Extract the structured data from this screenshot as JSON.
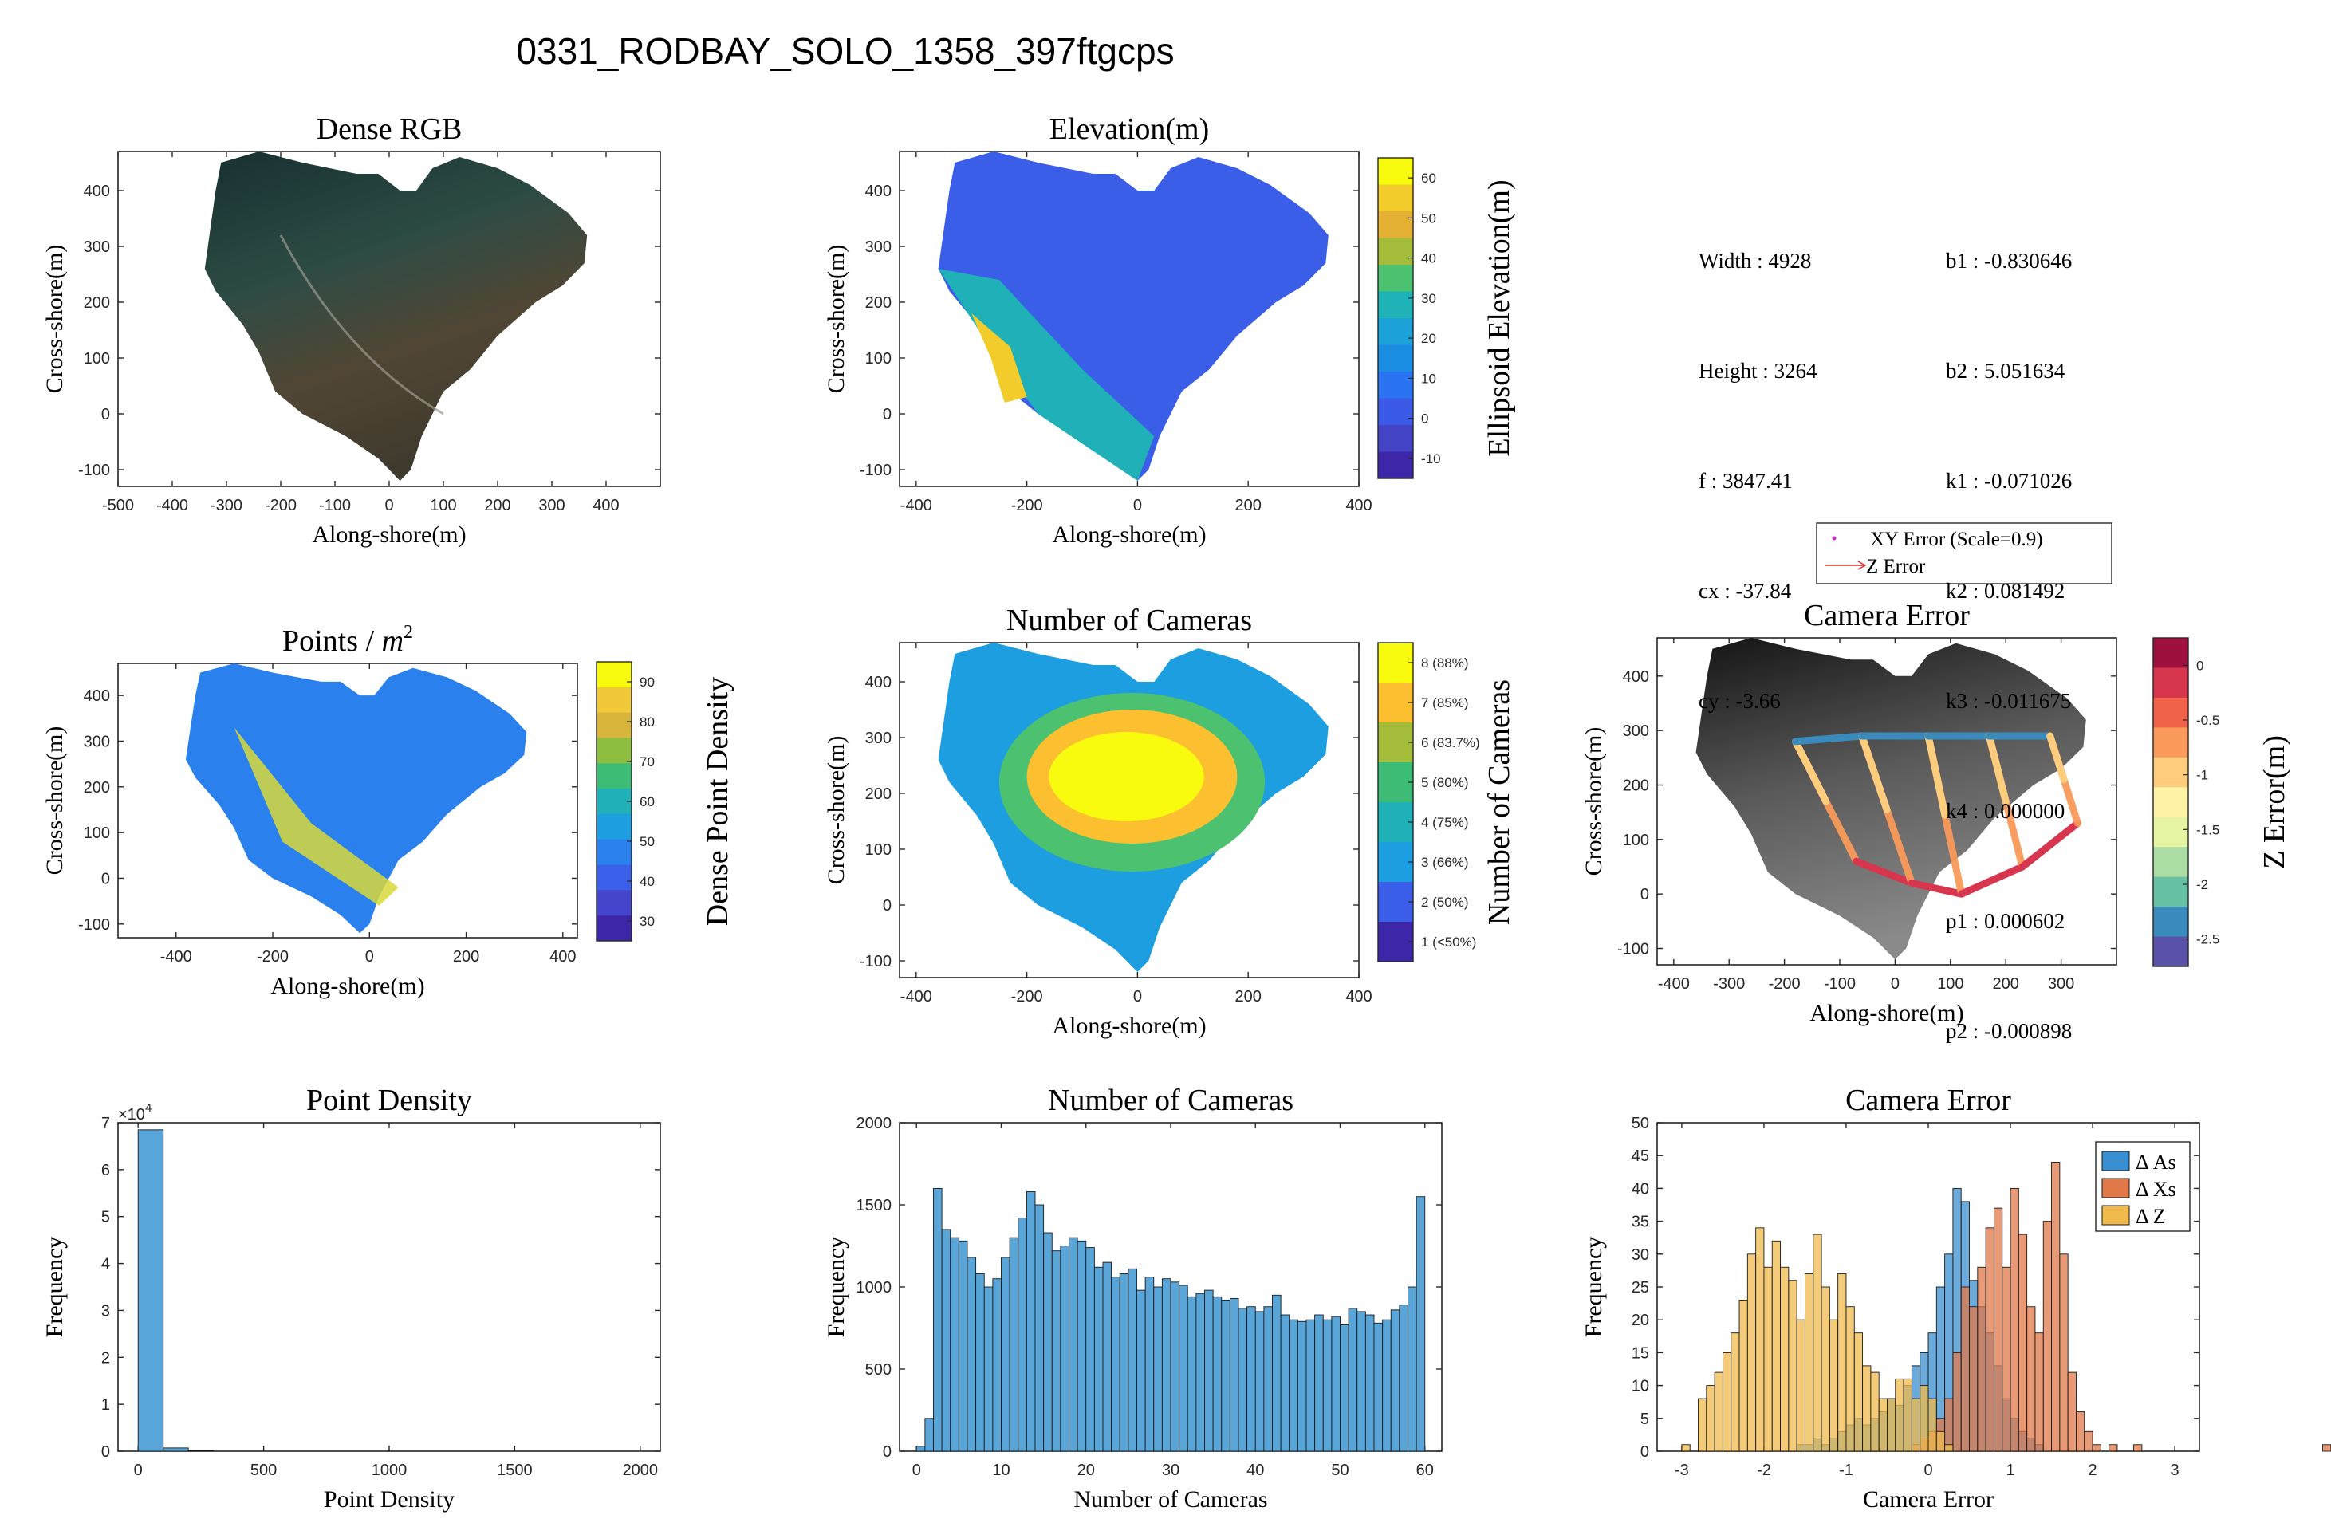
{
  "figure": {
    "suptitle": "0331_RODBAY_SOLO_1358_397ftgcps"
  },
  "camera_params": {
    "left": [
      {
        "label": "Width",
        "value": "4928"
      },
      {
        "label": "Height",
        "value": "3264"
      },
      {
        "label": "f",
        "value": "3847.41"
      },
      {
        "label": "cx",
        "value": "-37.84"
      },
      {
        "label": "cy",
        "value": "-3.66"
      }
    ],
    "right": [
      {
        "label": "b1",
        "value": "-0.830646"
      },
      {
        "label": "b2",
        "value": "5.051634"
      },
      {
        "label": "k1",
        "value": "-0.071026"
      },
      {
        "label": "k2",
        "value": "0.081492"
      },
      {
        "label": "k3",
        "value": "-0.011675"
      },
      {
        "label": "k4",
        "value": "0.000000"
      },
      {
        "label": "p1",
        "value": "0.000602"
      },
      {
        "label": "p2",
        "value": "-0.000898"
      }
    ],
    "separator": " : "
  },
  "camera_error_legend": {
    "xy_label": "XY Error (Scale=0.9)",
    "z_label": "Z Error",
    "xy_color": "#d020d0",
    "z_color": "#e03030"
  },
  "chart_data": [
    {
      "id": "dense-rgb",
      "type": "image-map",
      "title": "Dense RGB",
      "xlabel": "Along-shore(m)",
      "ylabel": "Cross-shore(m)",
      "xlim": [
        -500,
        500
      ],
      "ylim": [
        -130,
        470
      ],
      "xticks": [
        -500,
        -400,
        -300,
        -200,
        -100,
        0,
        100,
        200,
        300,
        400
      ],
      "yticks": [
        -100,
        0,
        100,
        200,
        300,
        400
      ]
    },
    {
      "id": "elevation",
      "type": "heatmap",
      "title": "Elevation(m)",
      "xlabel": "Along-shore(m)",
      "ylabel": "Cross-shore(m)",
      "xlim": [
        -430,
        400
      ],
      "ylim": [
        -130,
        470
      ],
      "xticks": [
        -400,
        -200,
        0,
        200,
        400
      ],
      "yticks": [
        -100,
        0,
        100,
        200,
        300,
        400
      ],
      "colorbar": {
        "label": "Ellipsoid Elevation(m)",
        "ticks": [
          "60",
          "50",
          "40",
          "30",
          "20",
          "10",
          "0",
          "-10"
        ],
        "colors": [
          "#f9fb0e",
          "#f1cc2a",
          "#e3b033",
          "#a3bd3a",
          "#4cc16f",
          "#1fb3b8",
          "#1da2d8",
          "#1b8ee4",
          "#2b74f1",
          "#3b5ae7",
          "#4343c6",
          "#3e26a8"
        ]
      }
    },
    {
      "id": "points-density-map",
      "type": "heatmap",
      "title": "Points / ",
      "title_math": "m",
      "title_sup": "2",
      "xlabel": "Along-shore(m)",
      "ylabel": "Cross-shore(m)",
      "xlim": [
        -520,
        430
      ],
      "ylim": [
        -130,
        470
      ],
      "xticks": [
        -400,
        -200,
        0,
        200,
        400
      ],
      "yticks": [
        -100,
        0,
        100,
        200,
        300,
        400
      ],
      "colorbar": {
        "label": "Dense Point Density",
        "ticks": [
          "90",
          "80",
          "70",
          "60",
          "50",
          "40",
          "30"
        ],
        "colors": [
          "#f9fb0e",
          "#f0c838",
          "#d8b53a",
          "#8dbe3f",
          "#3cbc75",
          "#1fb0b8",
          "#1c9ee0",
          "#2a81ee",
          "#3a60ea",
          "#4444cc",
          "#3e26a8"
        ]
      }
    },
    {
      "id": "number-cameras-map",
      "type": "heatmap",
      "title": "Number of Cameras",
      "xlabel": "Along-shore(m)",
      "ylabel": "Cross-shore(m)",
      "xlim": [
        -430,
        400
      ],
      "ylim": [
        -130,
        470
      ],
      "xticks": [
        -400,
        -200,
        0,
        200,
        400
      ],
      "yticks": [
        -100,
        0,
        100,
        200,
        300,
        400
      ],
      "colorbar": {
        "label": "Number of Cameras",
        "ticks": [
          "8 (88%)",
          "7 (85%)",
          "6 (83.7%)",
          "5 (80%)",
          "4 (75%)",
          "3 (66%)",
          "2 (50%)",
          "1 (<50%)"
        ],
        "colors": [
          "#f9fb0e",
          "#fbbf2f",
          "#a3bd3a",
          "#3cbc75",
          "#1fb0b8",
          "#1c9ee0",
          "#3a5ee8",
          "#3e26a8"
        ]
      }
    },
    {
      "id": "camera-error-map",
      "type": "scatter",
      "title": "Camera Error",
      "xlabel": "Along-shore(m)",
      "ylabel": "Cross-shore(m)",
      "xlim": [
        -430,
        400
      ],
      "ylim": [
        -130,
        470
      ],
      "xticks": [
        -400,
        -300,
        -200,
        -100,
        0,
        100,
        200,
        300
      ],
      "yticks": [
        -100,
        0,
        100,
        200,
        300,
        400
      ],
      "colorbar": {
        "label": "Z Error(m)",
        "ticks": [
          "0",
          "-0.5",
          "-1",
          "-1.5",
          "-2",
          "-2.5"
        ],
        "colors": [
          "#a0103f",
          "#d8354f",
          "#f0624a",
          "#f99a5a",
          "#fdcc7d",
          "#fef2a7",
          "#e6f5a1",
          "#abdca3",
          "#68c1a4",
          "#3a8bbb",
          "#5a52a8"
        ]
      },
      "flight_lines": [
        {
          "x1": -180,
          "y1": 280,
          "x2": -70,
          "y2": 60
        },
        {
          "x1": -60,
          "y1": 290,
          "x2": 30,
          "y2": 20
        },
        {
          "x1": 60,
          "y1": 290,
          "x2": 120,
          "y2": 0
        },
        {
          "x1": 170,
          "y1": 290,
          "x2": 230,
          "y2": 50
        },
        {
          "x1": 280,
          "y1": 290,
          "x2": 330,
          "y2": 130
        }
      ]
    },
    {
      "id": "point-density-hist",
      "type": "bar",
      "title": "Point Density",
      "xlabel": "Point Density",
      "ylabel": "Frequency",
      "xlim": [
        -80,
        2080
      ],
      "ylim": [
        0,
        70000
      ],
      "xticks": [
        0,
        500,
        1000,
        1500,
        2000
      ],
      "yticks": [
        0,
        1,
        2,
        3,
        4,
        5,
        6,
        7
      ],
      "yexp_label": "×10",
      "yexp": "4",
      "bin_width": 100,
      "bins": [
        0,
        100,
        200
      ],
      "values": [
        68500,
        700,
        150
      ],
      "color": "#5aa5d8"
    },
    {
      "id": "number-cameras-hist",
      "type": "bar",
      "title": "Number of Cameras",
      "xlabel": "Number of Cameras",
      "ylabel": "Frequency",
      "xlim": [
        -2,
        62
      ],
      "ylim": [
        0,
        2000
      ],
      "xticks": [
        0,
        10,
        20,
        30,
        40,
        50,
        60
      ],
      "yticks": [
        0,
        500,
        1000,
        1500,
        2000
      ],
      "bin_width": 1,
      "bins": [
        0,
        1,
        2,
        3,
        4,
        5,
        6,
        7,
        8,
        9,
        10,
        11,
        12,
        13,
        14,
        15,
        16,
        17,
        18,
        19,
        20,
        21,
        22,
        23,
        24,
        25,
        26,
        27,
        28,
        29,
        30,
        31,
        32,
        33,
        34,
        35,
        36,
        37,
        38,
        39,
        40,
        41,
        42,
        43,
        44,
        45,
        46,
        47,
        48,
        49,
        50,
        51,
        52,
        53,
        54,
        55,
        56,
        57,
        58,
        59
      ],
      "values": [
        30,
        200,
        1600,
        1350,
        1300,
        1280,
        1180,
        1080,
        1000,
        1050,
        1180,
        1300,
        1420,
        1580,
        1500,
        1330,
        1220,
        1250,
        1300,
        1280,
        1240,
        1120,
        1150,
        1060,
        1080,
        1110,
        980,
        1060,
        1000,
        1050,
        1030,
        1010,
        940,
        960,
        980,
        940,
        920,
        930,
        870,
        880,
        850,
        880,
        950,
        830,
        800,
        790,
        800,
        830,
        800,
        820,
        770,
        870,
        850,
        830,
        780,
        800,
        860,
        890,
        1000,
        1550
      ],
      "color": "#5aa5d8"
    },
    {
      "id": "camera-error-hist",
      "type": "bar",
      "title": "Camera Error",
      "xlabel": "Camera Error",
      "ylabel": "Frequency",
      "xlim": [
        -3.3,
        3.3
      ],
      "ylim": [
        0,
        50
      ],
      "xticks": [
        -3,
        -2,
        -1,
        0,
        1,
        2,
        3
      ],
      "yticks": [
        0,
        5,
        10,
        15,
        20,
        25,
        30,
        35,
        40,
        45,
        50
      ],
      "bin_width": 0.1,
      "series": [
        {
          "name": "Δ As",
          "color": "#3a8fd0",
          "start": -1.6,
          "values": [
            1,
            1,
            2,
            1,
            2,
            3,
            4,
            5,
            4,
            5,
            6,
            8,
            7,
            10,
            13,
            15,
            18,
            25,
            30,
            40,
            38,
            26,
            22,
            18,
            13,
            8,
            5,
            3,
            2,
            1
          ]
        },
        {
          "name": "Δ Xs",
          "color": "#e07848",
          "start": -0.2,
          "values": [
            1,
            2,
            3,
            5,
            8,
            15,
            25,
            22,
            28,
            34,
            37,
            28,
            40,
            33,
            22,
            18,
            35,
            44,
            30,
            12,
            6,
            3,
            1,
            0,
            1,
            0,
            0,
            1,
            0,
            0,
            0,
            0,
            0,
            0,
            0,
            0,
            0,
            0,
            0,
            0,
            0,
            0,
            0,
            0,
            0,
            0,
            0,
            0,
            0,
            0,
            1
          ]
        },
        {
          "name": "Δ Z",
          "color": "#f0bb4c",
          "start": -3.0,
          "values": [
            1,
            0,
            8,
            10,
            12,
            15,
            18,
            23,
            30,
            34,
            28,
            32,
            28,
            26,
            20,
            27,
            33,
            25,
            20,
            27,
            22,
            18,
            13,
            12,
            8,
            8,
            11,
            11,
            8,
            10,
            8,
            3,
            1
          ]
        }
      ]
    }
  ]
}
